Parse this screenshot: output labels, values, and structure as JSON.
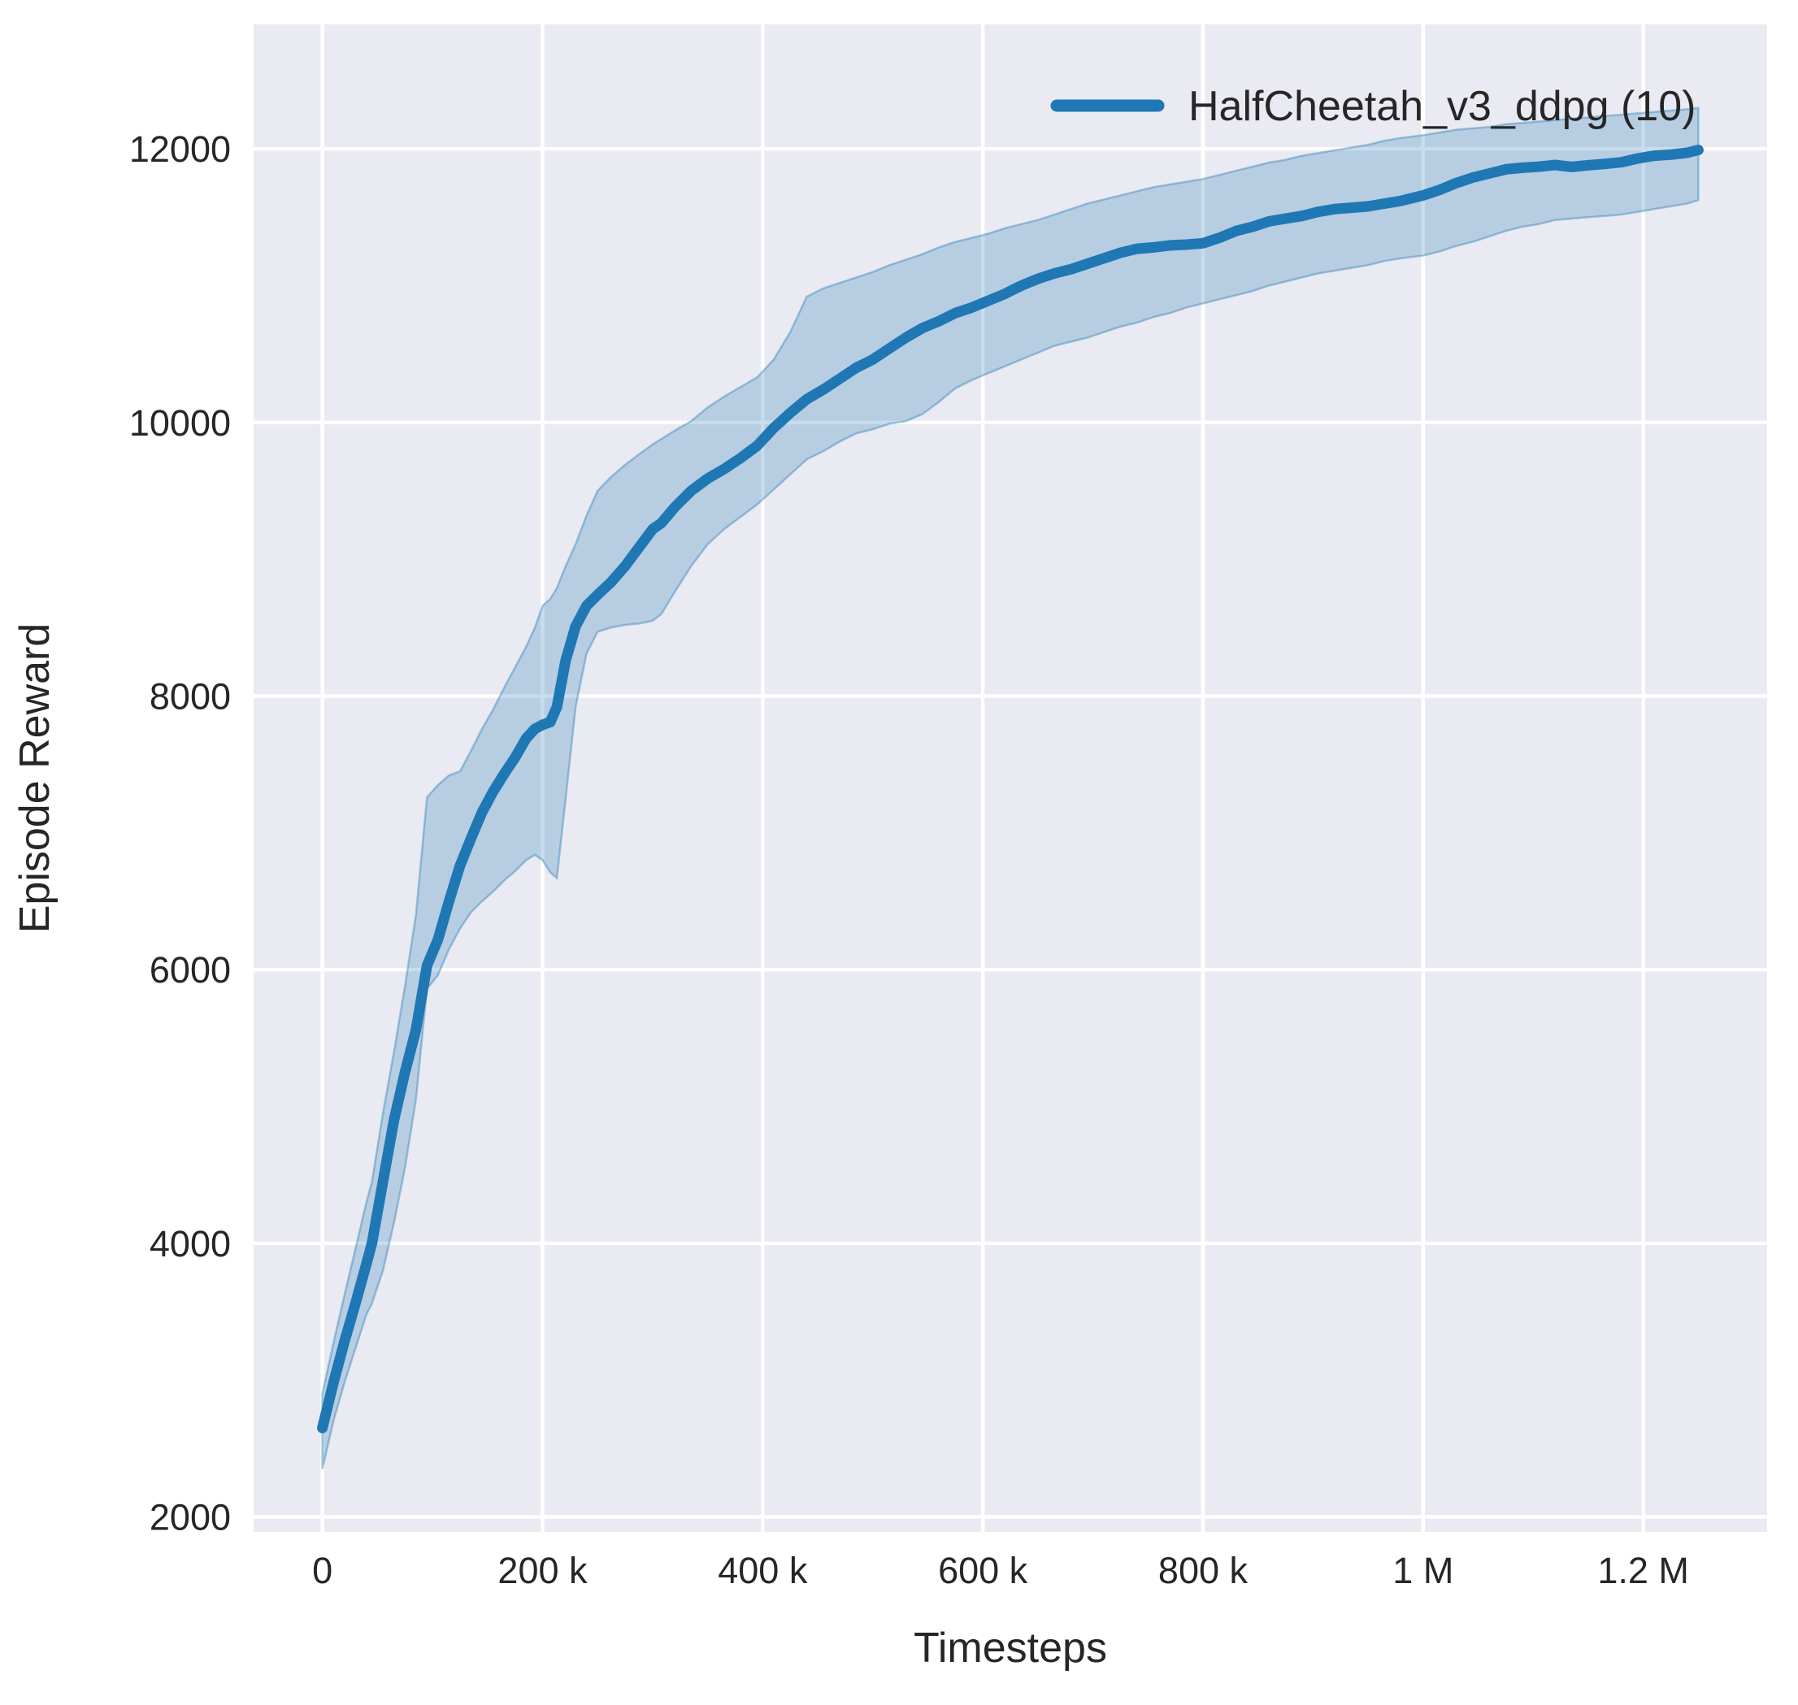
{
  "chart_data": {
    "type": "line",
    "title": "",
    "xlabel": "Timesteps",
    "ylabel": "Episode Reward",
    "legend_position": "upper right",
    "grid": true,
    "xlim_steps": [
      -62500,
      1312500
    ],
    "ylim": [
      1890,
      12910
    ],
    "x_ticks": [
      {
        "value": 0,
        "label": "0"
      },
      {
        "value": 200000,
        "label": "200 k"
      },
      {
        "value": 400000,
        "label": "400 k"
      },
      {
        "value": 600000,
        "label": "600 k"
      },
      {
        "value": 800000,
        "label": "800 k"
      },
      {
        "value": 1000000,
        "label": "1 M"
      },
      {
        "value": 1200000,
        "label": "1.2 M"
      }
    ],
    "y_ticks": [
      {
        "value": 2000,
        "label": "2000"
      },
      {
        "value": 4000,
        "label": "4000"
      },
      {
        "value": 6000,
        "label": "6000"
      },
      {
        "value": 8000,
        "label": "8000"
      },
      {
        "value": 10000,
        "label": "10000"
      },
      {
        "value": 12000,
        "label": "12000"
      }
    ],
    "series": [
      {
        "name": "HalfCheetah_v3_ddpg (10)",
        "color": "#1f77b4",
        "band_color": "#1f77b4",
        "band_opacity": 0.25,
        "points_format": [
          "timesteps_thousands",
          "mean",
          "band_low",
          "band_high"
        ],
        "points": [
          [
            0,
            2650,
            2350,
            2900
          ],
          [
            10,
            2980,
            2700,
            3270
          ],
          [
            20,
            3280,
            2980,
            3620
          ],
          [
            30,
            3560,
            3230,
            3960
          ],
          [
            40,
            3850,
            3480,
            4300
          ],
          [
            45,
            4000,
            3560,
            4450
          ],
          [
            55,
            4450,
            3800,
            4950
          ],
          [
            65,
            4900,
            4150,
            5400
          ],
          [
            75,
            5250,
            4550,
            5880
          ],
          [
            85,
            5560,
            5050,
            6400
          ],
          [
            95,
            6030,
            5860,
            7260
          ],
          [
            105,
            6220,
            5960,
            7350
          ],
          [
            115,
            6500,
            6150,
            7420
          ],
          [
            125,
            6760,
            6300,
            7450
          ],
          [
            135,
            6960,
            6420,
            7600
          ],
          [
            145,
            7150,
            6500,
            7760
          ],
          [
            155,
            7300,
            6570,
            7900
          ],
          [
            165,
            7430,
            6650,
            8060
          ],
          [
            175,
            7550,
            6720,
            8210
          ],
          [
            185,
            7690,
            6800,
            8360
          ],
          [
            193,
            7760,
            6840,
            8500
          ],
          [
            200,
            7790,
            6800,
            8660
          ],
          [
            207,
            7810,
            6710,
            8710
          ],
          [
            213,
            7920,
            6670,
            8790
          ],
          [
            221,
            8260,
            7250,
            8950
          ],
          [
            230,
            8510,
            7920,
            9110
          ],
          [
            240,
            8660,
            8310,
            9320
          ],
          [
            250,
            8740,
            8470,
            9500
          ],
          [
            262,
            8830,
            8500,
            9600
          ],
          [
            275,
            8950,
            8520,
            9690
          ],
          [
            288,
            9090,
            8530,
            9770
          ],
          [
            300,
            9220,
            8550,
            9840
          ],
          [
            308,
            9265,
            8600,
            9880
          ],
          [
            320,
            9380,
            8760,
            9940
          ],
          [
            335,
            9500,
            8950,
            10010
          ],
          [
            350,
            9590,
            9110,
            10110
          ],
          [
            365,
            9660,
            9220,
            10190
          ],
          [
            380,
            9740,
            9310,
            10260
          ],
          [
            395,
            9830,
            9400,
            10330
          ],
          [
            410,
            9960,
            9510,
            10460
          ],
          [
            425,
            10070,
            9620,
            10660
          ],
          [
            440,
            10170,
            9730,
            10920
          ],
          [
            455,
            10240,
            9790,
            10980
          ],
          [
            470,
            10320,
            9860,
            11020
          ],
          [
            485,
            10400,
            9920,
            11060
          ],
          [
            500,
            10460,
            9950,
            11100
          ],
          [
            515,
            10540,
            9990,
            11150
          ],
          [
            530,
            10620,
            10010,
            11190
          ],
          [
            545,
            10690,
            10060,
            11230
          ],
          [
            560,
            10740,
            10150,
            11280
          ],
          [
            575,
            10800,
            10250,
            11320
          ],
          [
            590,
            10840,
            10310,
            11350
          ],
          [
            605,
            10890,
            10360,
            11380
          ],
          [
            620,
            10940,
            10410,
            11420
          ],
          [
            635,
            11000,
            10460,
            11450
          ],
          [
            650,
            11050,
            10510,
            11480
          ],
          [
            665,
            11090,
            10560,
            11520
          ],
          [
            680,
            11120,
            10590,
            11560
          ],
          [
            695,
            11160,
            10620,
            11600
          ],
          [
            710,
            11200,
            10660,
            11630
          ],
          [
            725,
            11240,
            10700,
            11660
          ],
          [
            740,
            11270,
            10730,
            11690
          ],
          [
            755,
            11280,
            10770,
            11720
          ],
          [
            770,
            11295,
            10800,
            11740
          ],
          [
            785,
            11300,
            10840,
            11760
          ],
          [
            800,
            11310,
            10870,
            11780
          ],
          [
            815,
            11350,
            10900,
            11810
          ],
          [
            830,
            11400,
            10930,
            11840
          ],
          [
            845,
            11430,
            10960,
            11870
          ],
          [
            860,
            11470,
            11000,
            11900
          ],
          [
            875,
            11490,
            11030,
            11920
          ],
          [
            890,
            11510,
            11060,
            11950
          ],
          [
            905,
            11540,
            11090,
            11970
          ],
          [
            920,
            11560,
            11110,
            11990
          ],
          [
            935,
            11570,
            11130,
            12010
          ],
          [
            950,
            11580,
            11150,
            12030
          ],
          [
            965,
            11600,
            11180,
            12060
          ],
          [
            980,
            11620,
            11200,
            12080
          ],
          [
            1000,
            11660,
            11220,
            12100
          ],
          [
            1015,
            11700,
            11250,
            12120
          ],
          [
            1030,
            11750,
            11290,
            12140
          ],
          [
            1045,
            11790,
            11320,
            12150
          ],
          [
            1060,
            11820,
            11360,
            12160
          ],
          [
            1075,
            11850,
            11400,
            12180
          ],
          [
            1090,
            11862,
            11430,
            12190
          ],
          [
            1105,
            11870,
            11450,
            12200
          ],
          [
            1120,
            11882,
            11480,
            12210
          ],
          [
            1135,
            11868,
            11490,
            12220
          ],
          [
            1150,
            11880,
            11500,
            12230
          ],
          [
            1165,
            11890,
            11510,
            12240
          ],
          [
            1180,
            11902,
            11520,
            12250
          ],
          [
            1195,
            11930,
            11540,
            12260
          ],
          [
            1210,
            11950,
            11560,
            12270
          ],
          [
            1225,
            11958,
            11580,
            12280
          ],
          [
            1240,
            11972,
            11600,
            12290
          ],
          [
            1250,
            11992,
            11625,
            12300
          ]
        ]
      }
    ],
    "style": {
      "plot_background": "#eaeaf2",
      "grid_color": "#ffffff",
      "text_color": "#262626",
      "line_color": "#1f77b4"
    }
  }
}
